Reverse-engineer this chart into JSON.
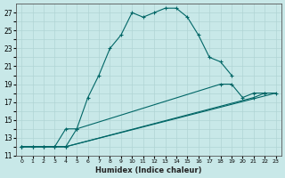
{
  "xlabel": "Humidex (Indice chaleur)",
  "background_color": "#c8e8e8",
  "grid_color": "#b0d4d4",
  "line_color": "#006666",
  "xlim": [
    -0.5,
    23.5
  ],
  "ylim": [
    11,
    28
  ],
  "xticks": [
    0,
    1,
    2,
    3,
    4,
    5,
    6,
    7,
    8,
    9,
    10,
    11,
    12,
    13,
    14,
    15,
    16,
    17,
    18,
    19,
    20,
    21,
    22,
    23
  ],
  "yticks": [
    11,
    12,
    13,
    14,
    15,
    16,
    17,
    18,
    19,
    20,
    21,
    22,
    23,
    24,
    25,
    26,
    27
  ],
  "ytick_labels": [
    "11",
    "",
    "13",
    "",
    "15",
    "",
    "17",
    "",
    "19",
    "",
    "21",
    "",
    "23",
    "",
    "25",
    "",
    "27"
  ],
  "line1_x": [
    0,
    1,
    2,
    3,
    4,
    5,
    6,
    7,
    8,
    9,
    10,
    11,
    12,
    13,
    14,
    15,
    16,
    17,
    18,
    19
  ],
  "line1_y": [
    12,
    12,
    12,
    12,
    12,
    14,
    17.5,
    20,
    23,
    24.5,
    27,
    26.5,
    27,
    27.5,
    27.5,
    26.5,
    24.5,
    22,
    21.5,
    20
  ],
  "line2_x": [
    0,
    1,
    2,
    3,
    4,
    5,
    18,
    19,
    20,
    21,
    22,
    23
  ],
  "line2_y": [
    12,
    12,
    12,
    12,
    14,
    14,
    19,
    19,
    17.5,
    18,
    18,
    18
  ],
  "line3_x": [
    0,
    4,
    21,
    22
  ],
  "line3_y": [
    12,
    12,
    17.5,
    18
  ],
  "line4_x": [
    0,
    4,
    23
  ],
  "line4_y": [
    12,
    12,
    18
  ]
}
